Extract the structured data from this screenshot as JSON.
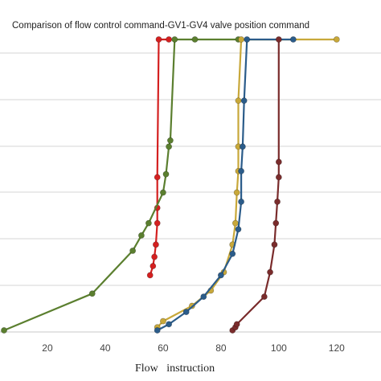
{
  "chart_data": {
    "type": "line",
    "title": "Comparison of flow control command-GV1-GV4 valve position command",
    "xlabel": "Flow   instruction",
    "ylabel": "",
    "xlim": [
      5,
      122
    ],
    "xticks": [
      20,
      40,
      60,
      80,
      100,
      120
    ],
    "ylim": [
      0,
      100
    ],
    "grid": "horizontal",
    "series": [
      {
        "color": "#D42020",
        "x": [
          55.5,
          56.5,
          57,
          57.5,
          58,
          58,
          58,
          58.5,
          62
        ],
        "y": [
          18,
          21,
          24,
          28,
          35,
          40,
          50,
          95,
          95
        ]
      },
      {
        "color": "#5B7F2F",
        "x": [
          5,
          35.5,
          49.5,
          52.5,
          55,
          60,
          61,
          62,
          62.5,
          64,
          71,
          86
        ],
        "y": [
          0,
          12,
          26,
          31,
          35,
          45,
          51,
          60,
          62,
          95,
          95,
          95
        ]
      },
      {
        "color": "#C8A83A",
        "x": [
          58,
          60,
          70,
          76.5,
          81,
          84,
          85,
          85.5,
          86,
          86,
          86,
          87,
          120
        ],
        "y": [
          1,
          3,
          8,
          13,
          19,
          28,
          35,
          45,
          52,
          60,
          75,
          95,
          95
        ]
      },
      {
        "color": "#2B5C8A",
        "x": [
          58,
          62,
          68,
          74,
          80,
          84,
          86,
          87,
          87,
          87.5,
          88,
          89,
          105
        ],
        "y": [
          0,
          2,
          6,
          11,
          18,
          25,
          33,
          42,
          52,
          60,
          75,
          95,
          95
        ]
      },
      {
        "color": "#7A2C2C",
        "x": [
          84,
          85,
          85.5,
          95,
          97,
          98.5,
          99,
          99.5,
          100,
          100,
          100
        ],
        "y": [
          0,
          1,
          2,
          11,
          19,
          28,
          35,
          42,
          50,
          55,
          95
        ]
      }
    ]
  }
}
